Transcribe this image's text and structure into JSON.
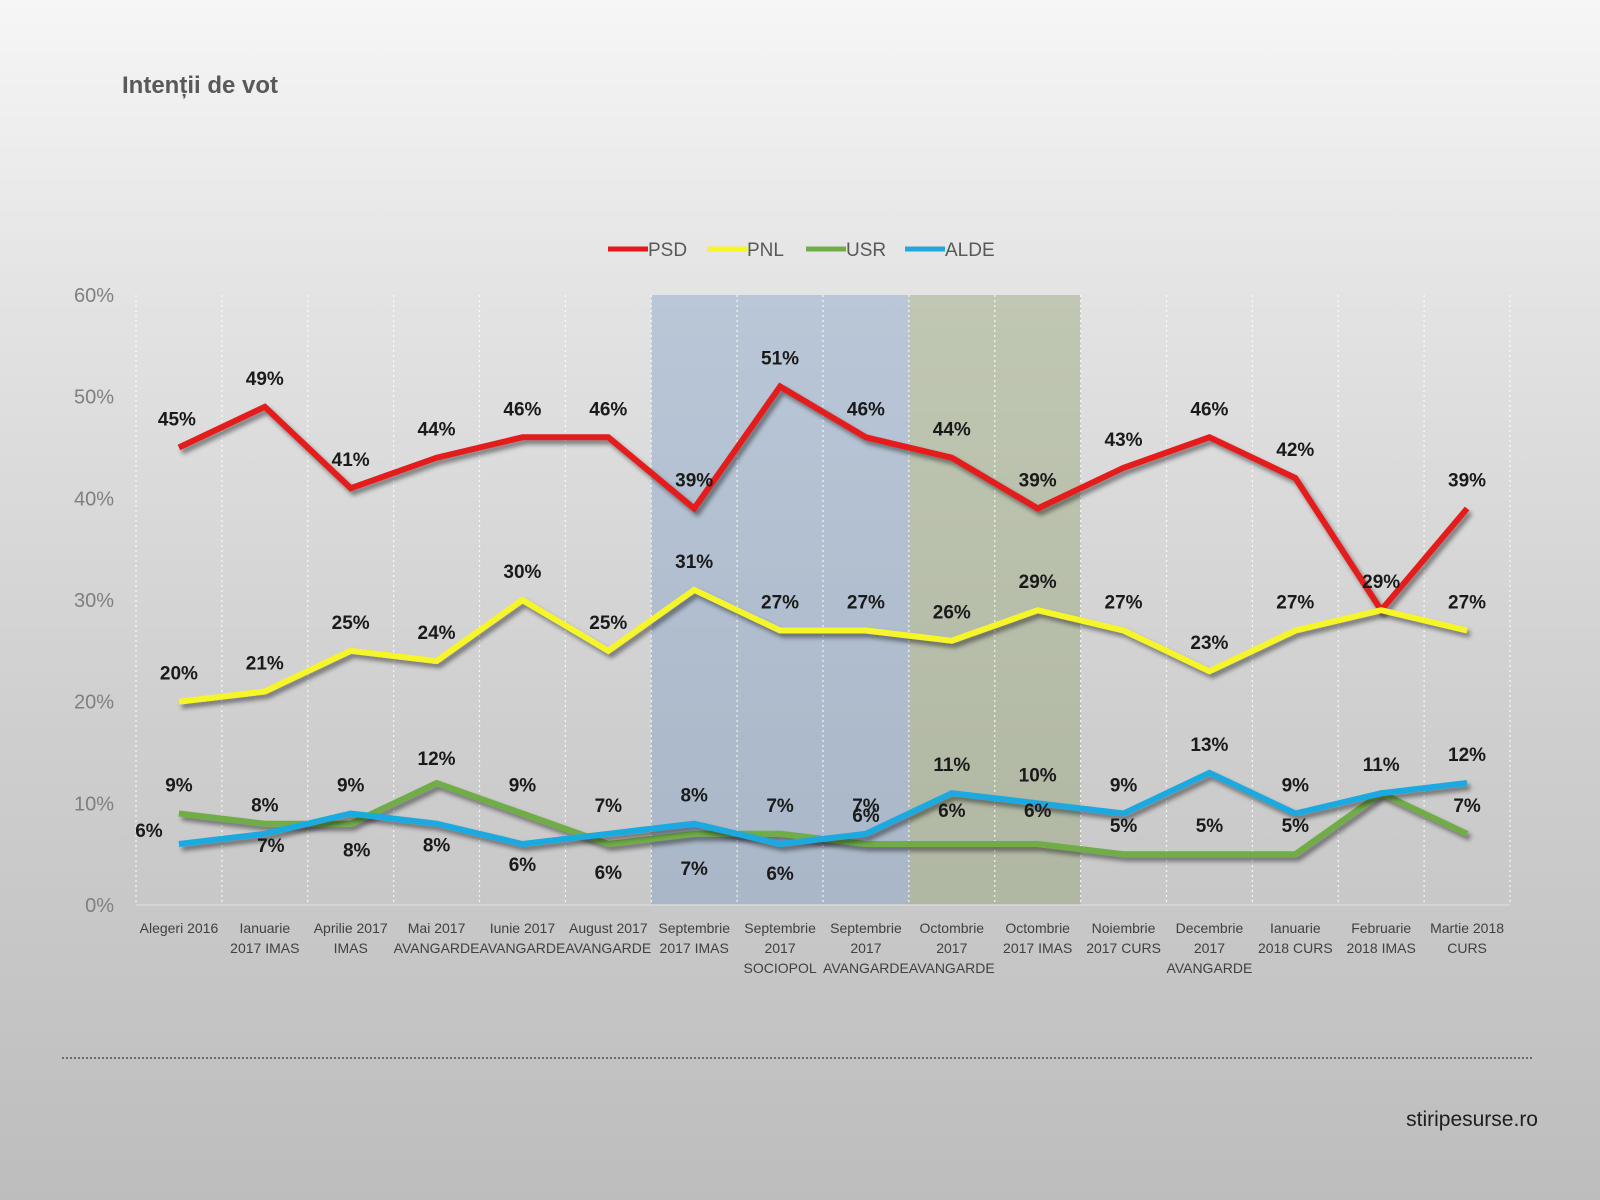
{
  "title": "Intenții de vot",
  "footer": {
    "source": "stiripesurse.ro"
  },
  "chart_data": {
    "type": "line",
    "title": "Intenții de vot",
    "x": [
      [
        "Alegeri 2016"
      ],
      [
        "Ianuarie",
        "2017 IMAS"
      ],
      [
        "Aprilie 2017",
        "IMAS"
      ],
      [
        "Mai 2017",
        "AVANGARDE"
      ],
      [
        "Iunie 2017",
        "AVANGARDE"
      ],
      [
        "August 2017",
        "AVANGARDE"
      ],
      [
        "Septembrie",
        "2017 IMAS"
      ],
      [
        "Septembrie",
        "2017",
        "SOCIOPOL"
      ],
      [
        "Septembrie",
        "2017",
        "AVANGARDE"
      ],
      [
        "Octombrie",
        "2017",
        "AVANGARDE"
      ],
      [
        "Octombrie",
        "2017 IMAS"
      ],
      [
        "Noiembrie",
        "2017 CURS"
      ],
      [
        "Decembrie",
        "2017",
        "AVANGARDE"
      ],
      [
        "Ianuarie",
        "2018 CURS"
      ],
      [
        "Februarie",
        "2018 IMAS"
      ],
      [
        "Martie 2018",
        "CURS"
      ]
    ],
    "series": [
      {
        "name": "PSD",
        "color": "#e41a1a",
        "values": [
          45,
          49,
          41,
          44,
          46,
          46,
          39,
          51,
          46,
          44,
          39,
          43,
          46,
          42,
          29,
          39
        ]
      },
      {
        "name": "PNL",
        "color": "#f5f52a",
        "values": [
          20,
          21,
          25,
          24,
          30,
          25,
          31,
          27,
          27,
          26,
          29,
          27,
          23,
          27,
          29,
          27
        ]
      },
      {
        "name": "USR",
        "color": "#70ad47",
        "values": [
          9,
          8,
          8,
          12,
          9,
          6,
          7,
          7,
          6,
          6,
          6,
          5,
          5,
          5,
          11,
          7
        ]
      },
      {
        "name": "ALDE",
        "color": "#1fa9e0",
        "values": [
          6,
          7,
          9,
          8,
          6,
          7,
          8,
          6,
          7,
          11,
          10,
          9,
          13,
          9,
          11,
          12
        ]
      }
    ],
    "data_labels": {
      "PSD": [
        "45%",
        "49%",
        "41%",
        "44%",
        "46%",
        "46%",
        "39%",
        "51%",
        "46%",
        "44%",
        "39%",
        "43%",
        "46%",
        "42%",
        "",
        "39%"
      ],
      "PNL": [
        "20%",
        "21%",
        "25%",
        "24%",
        "30%",
        "25%",
        "31%",
        "27%",
        "27%",
        "26%",
        "29%",
        "27%",
        "23%",
        "27%",
        "29%",
        "27%"
      ],
      "USR": [
        "9%",
        "8%",
        "8%",
        "12%",
        "9%",
        "6%",
        "7%",
        "7%",
        "6%",
        "6%",
        "6%",
        "5%",
        "5%",
        "5%",
        "11%",
        "7%"
      ],
      "ALDE": [
        "6%",
        "7%",
        "9%",
        "8%",
        "6%",
        "7%",
        "8%",
        "6%",
        "7%",
        "11%",
        "10%",
        "9%",
        "13%",
        "9%",
        "",
        "12%"
      ]
    },
    "y_ticks": [
      "0%",
      "10%",
      "20%",
      "30%",
      "40%",
      "50%",
      "60%"
    ],
    "ylim": [
      0,
      60
    ],
    "highlight_bands": [
      {
        "from_index": 6,
        "to_index": 8,
        "color": "#7f9fc8"
      },
      {
        "from_index": 9,
        "to_index": 10,
        "color": "#8fa070"
      }
    ],
    "grid": true,
    "legend": "top-center"
  }
}
